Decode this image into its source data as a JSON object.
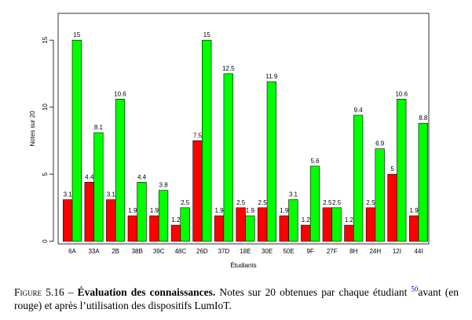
{
  "chart_data": {
    "type": "bar",
    "x_label": "Étudiants",
    "y_label": "Notes sur 20",
    "categories": [
      "6A",
      "33A",
      "2B",
      "38B",
      "39C",
      "48C",
      "26D",
      "37D",
      "18E",
      "30E",
      "50E",
      "9F",
      "27F",
      "8H",
      "24H",
      "12I",
      "44I"
    ],
    "series": [
      {
        "color": "#ff0000",
        "values": [
          3.1,
          4.4,
          3.1,
          1.9,
          1.9,
          1.2,
          7.5,
          1.9,
          2.5,
          2.5,
          1.9,
          1.2,
          2.5,
          1.2,
          2.5,
          5,
          1.9
        ]
      },
      {
        "color": "#00ff00",
        "values": [
          15,
          8.1,
          10.6,
          4.4,
          3.8,
          2.5,
          15,
          12.5,
          1.9,
          11.9,
          3.1,
          5.6,
          2.5,
          9.4,
          6.9,
          10.6,
          8.8
        ]
      }
    ],
    "ylim": [
      -0.2,
      17
    ],
    "yticks": [
      0,
      5,
      10,
      15
    ]
  },
  "caption": {
    "label": "Figure 5.16 –",
    "title": "Évaluation des connaissances.",
    "text": "Notes sur 20 obtenues par chaque étudiant",
    "footnote": "50",
    "text_after": "avant (en rouge) et après l’utilisation des dispositifs LumIoT."
  }
}
